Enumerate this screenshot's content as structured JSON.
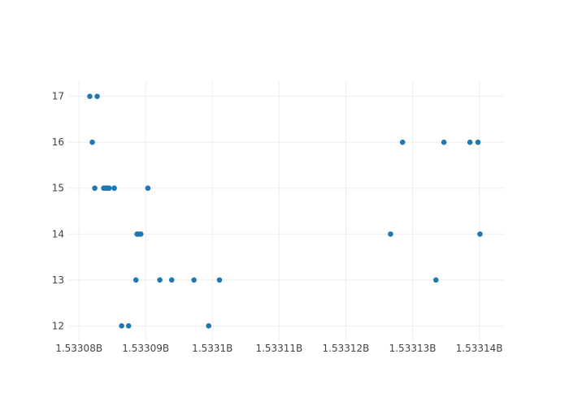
{
  "chart_data": {
    "type": "scatter",
    "title": "",
    "xlabel": "",
    "ylabel": "",
    "xlim": [
      1533078400,
      1533143700
    ],
    "ylim": [
      11.67,
      17.33
    ],
    "grid": true,
    "marker_color": "#1f77b4",
    "x_ticks": [
      {
        "value": 1533080000,
        "label": "1.53308B"
      },
      {
        "value": 1533090000,
        "label": "1.53309B"
      },
      {
        "value": 1533100000,
        "label": "1.5331B"
      },
      {
        "value": 1533110000,
        "label": "1.53311B"
      },
      {
        "value": 1533120000,
        "label": "1.53312B"
      },
      {
        "value": 1533130000,
        "label": "1.53313B"
      },
      {
        "value": 1533140000,
        "label": "1.53314B"
      }
    ],
    "y_ticks": [
      {
        "value": 12,
        "label": "12"
      },
      {
        "value": 13,
        "label": "13"
      },
      {
        "value": 14,
        "label": "14"
      },
      {
        "value": 15,
        "label": "15"
      },
      {
        "value": 16,
        "label": "16"
      },
      {
        "value": 17,
        "label": "17"
      }
    ],
    "points": [
      {
        "x": 1533081630,
        "y": 17
      },
      {
        "x": 1533082730,
        "y": 17
      },
      {
        "x": 1533082000,
        "y": 16
      },
      {
        "x": 1533128500,
        "y": 16
      },
      {
        "x": 1533134700,
        "y": 16
      },
      {
        "x": 1533138600,
        "y": 16
      },
      {
        "x": 1533139800,
        "y": 16
      },
      {
        "x": 1533082370,
        "y": 15
      },
      {
        "x": 1533083710,
        "y": 15
      },
      {
        "x": 1533083990,
        "y": 15
      },
      {
        "x": 1533084270,
        "y": 15
      },
      {
        "x": 1533084510,
        "y": 15
      },
      {
        "x": 1533085290,
        "y": 15
      },
      {
        "x": 1533090330,
        "y": 15
      },
      {
        "x": 1533088710,
        "y": 14
      },
      {
        "x": 1533088950,
        "y": 14
      },
      {
        "x": 1533089270,
        "y": 14
      },
      {
        "x": 1533126700,
        "y": 14
      },
      {
        "x": 1533140100,
        "y": 14
      },
      {
        "x": 1533088540,
        "y": 13
      },
      {
        "x": 1533092120,
        "y": 13
      },
      {
        "x": 1533093900,
        "y": 13
      },
      {
        "x": 1533097240,
        "y": 13
      },
      {
        "x": 1533101060,
        "y": 13
      },
      {
        "x": 1533133500,
        "y": 13
      },
      {
        "x": 1533086390,
        "y": 12
      },
      {
        "x": 1533087440,
        "y": 12
      },
      {
        "x": 1533099440,
        "y": 12
      }
    ]
  }
}
